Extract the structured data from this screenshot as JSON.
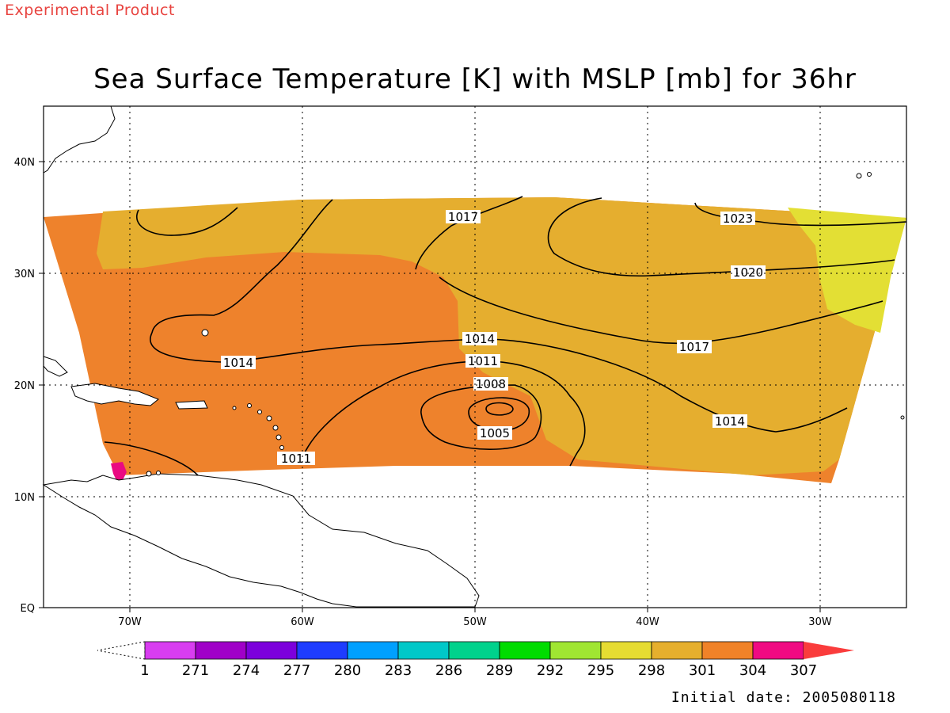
{
  "header": {
    "experimental": "Experimental Product",
    "title": "Sea Surface Temperature [K] with MSLP [mb] for 36hr",
    "initial_date": "Initial date: 2005080118"
  },
  "axes": {
    "lat_labels": [
      "EQ",
      "10N",
      "20N",
      "30N",
      "40N"
    ],
    "lon_labels": [
      "70W",
      "60W",
      "50W",
      "40W",
      "30W"
    ]
  },
  "colors": {
    "sst_304": "#ee822c",
    "sst_301": "#e5ae2f",
    "sst_298": "#e3df34",
    "sst_307": "#ea0a82",
    "land": "#ffffff",
    "contour": "#000000"
  },
  "isobars": [
    {
      "label": "1005"
    },
    {
      "label": "1008"
    },
    {
      "label": "1011"
    },
    {
      "label": "1011"
    },
    {
      "label": "1014"
    },
    {
      "label": "1014"
    },
    {
      "label": "1014"
    },
    {
      "label": "1017"
    },
    {
      "label": "1017"
    },
    {
      "label": "1020"
    },
    {
      "label": "1023"
    }
  ],
  "colorbar": {
    "labels": [
      "1",
      "271",
      "274",
      "277",
      "280",
      "283",
      "286",
      "289",
      "292",
      "295",
      "298",
      "301",
      "304",
      "307"
    ],
    "colors": [
      "#d83df0",
      "#a000c8",
      "#7c00dc",
      "#1e3cff",
      "#00a0ff",
      "#00c8c8",
      "#00d28c",
      "#00dc00",
      "#a0e632",
      "#e6dc32",
      "#e6af2d",
      "#f08228",
      "#f00a82",
      "#fa3c3c"
    ]
  }
}
